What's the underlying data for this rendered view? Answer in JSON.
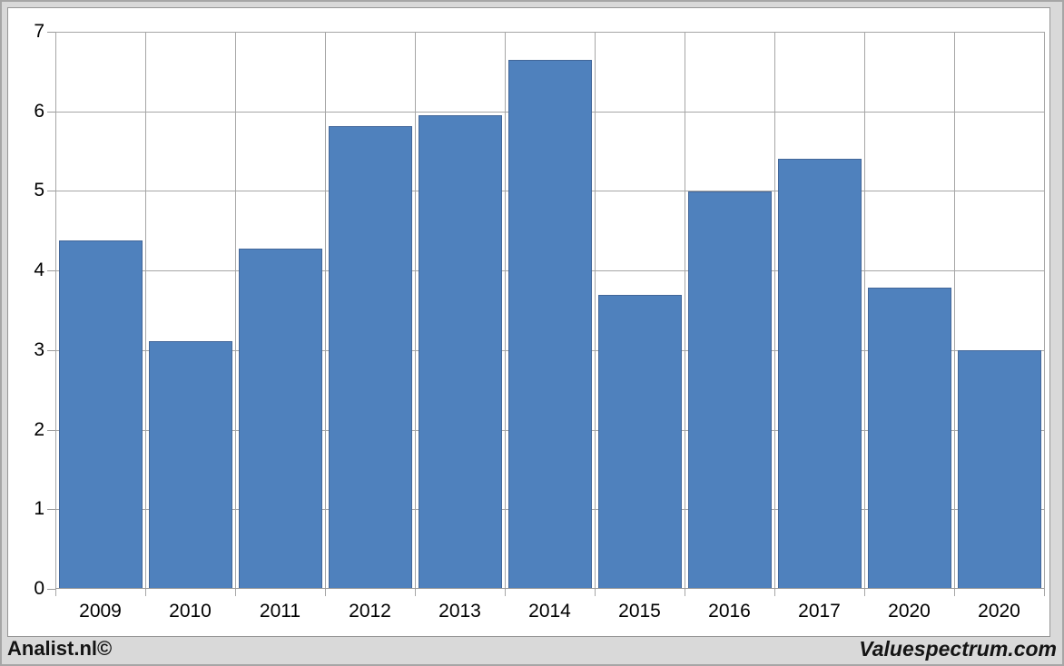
{
  "chart_data": {
    "type": "bar",
    "categories": [
      "2009",
      "2010",
      "2011",
      "2012",
      "2013",
      "2014",
      "2015",
      "2016",
      "2017",
      "2020",
      "2020"
    ],
    "values": [
      4.38,
      3.11,
      4.28,
      5.82,
      5.95,
      6.65,
      3.7,
      4.99,
      5.4,
      3.79,
      3.0
    ],
    "title": "",
    "xlabel": "",
    "ylabel": "",
    "ylim": [
      0,
      7
    ],
    "ytick_labels": [
      "0",
      "1",
      "2",
      "3",
      "4",
      "5",
      "6",
      "7"
    ],
    "grid": true,
    "legend_position": "none",
    "colors": {
      "bar_fill": "#4f81bd",
      "bar_border": "#426699",
      "gridline": "#a6a6a6",
      "axis": "#9a9a9a",
      "text": "#000000",
      "frame_background": "#d9d9d9",
      "plot_background": "#ffffff"
    }
  },
  "footer": {
    "left_credit": "Analist.nl©",
    "right_credit": "Valuespectrum.com"
  }
}
